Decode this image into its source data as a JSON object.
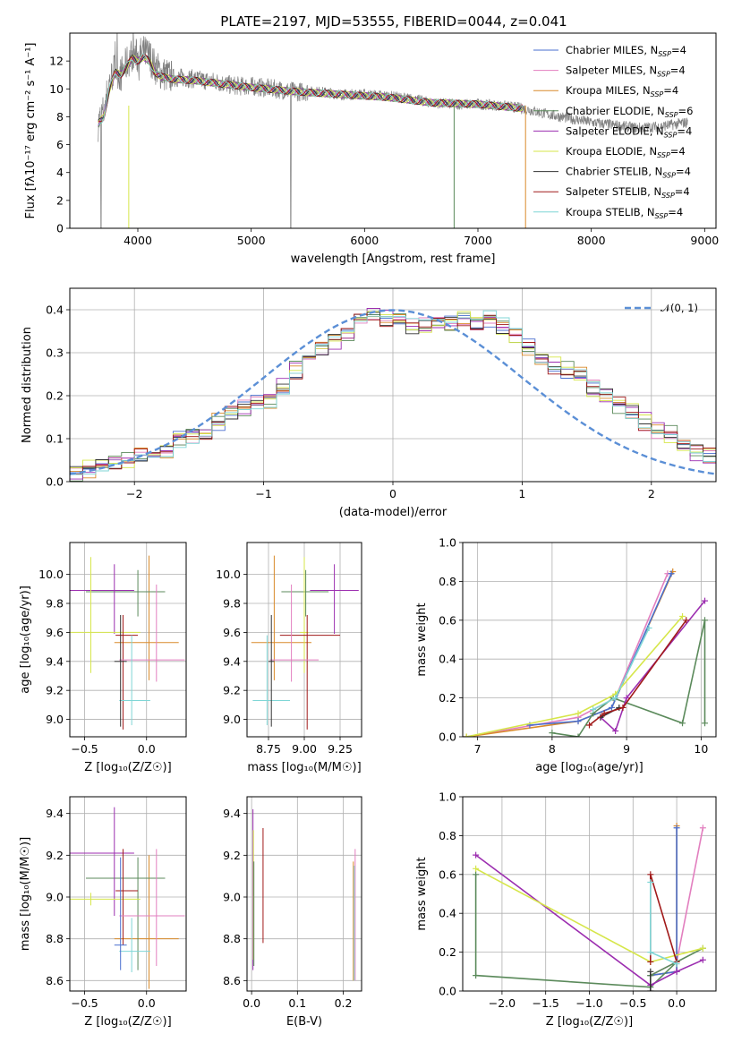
{
  "chart_data": [
    {
      "id": "spectrum",
      "type": "line",
      "title": "PLATE=2197, MJD=53555, FIBERID=0044, z=0.041",
      "xlabel": "wavelength [Angstrom, rest frame]",
      "ylabel": "Flux [fλ10⁻¹⁷ erg cm⁻² s⁻¹ A⁻¹]",
      "xlim": [
        3400,
        9100
      ],
      "ylim": [
        0,
        14
      ],
      "xticks": [
        4000,
        5000,
        6000,
        7000,
        8000,
        9000
      ],
      "yticks": [
        0,
        2,
        4,
        6,
        8,
        10,
        12
      ],
      "grid": false,
      "legend_position": "top-right",
      "data_color": "#808080",
      "observed_continuum": {
        "x": [
          3650,
          3700,
          3750,
          3800,
          3850,
          3900,
          3950,
          4000,
          4050,
          4100,
          4150,
          4200,
          4300,
          4400,
          4500,
          4600,
          4700,
          4800,
          4900,
          5000,
          5200,
          5400,
          5600,
          5800,
          6000,
          6200,
          6400,
          6600,
          6800,
          7000,
          7200,
          7400,
          7600,
          7800,
          8000,
          8200,
          8400,
          8600,
          8850
        ],
        "y": [
          7.5,
          8.5,
          10.5,
          11.5,
          11.0,
          11.8,
          12.5,
          12.3,
          12.6,
          12.4,
          11.6,
          11.2,
          10.8,
          10.8,
          10.7,
          10.6,
          10.5,
          10.3,
          10.2,
          10.2,
          10.0,
          9.8,
          9.8,
          9.6,
          9.6,
          9.5,
          9.3,
          9.0,
          8.9,
          8.9,
          8.8,
          8.6,
          8.2,
          7.9,
          7.6,
          7.4,
          7.2,
          7.3,
          7.6
        ]
      },
      "series": [
        {
          "name": "Chabrier MILES, N",
          "sub": "SSP",
          "suffix": "=4",
          "color": "#4a6fcf"
        },
        {
          "name": "Salpeter MILES, N",
          "sub": "SSP",
          "suffix": "=4",
          "color": "#e27fbf"
        },
        {
          "name": "Kroupa MILES, N",
          "sub": "SSP",
          "suffix": "=4",
          "color": "#d98a2b"
        },
        {
          "name": "Chabrier ELODIE, N",
          "sub": "SSP",
          "suffix": "=6",
          "color": "#5b8a5b"
        },
        {
          "name": "Salpeter ELODIE, N",
          "sub": "SSP",
          "suffix": "=4",
          "color": "#9c2eb0"
        },
        {
          "name": "Kroupa ELODIE, N",
          "sub": "SSP",
          "suffix": "=4",
          "color": "#d6e64a"
        },
        {
          "name": "Chabrier STELIB, N",
          "sub": "SSP",
          "suffix": "=4",
          "color": "#333333"
        },
        {
          "name": "Salpeter STELIB, N",
          "sub": "SSP",
          "suffix": "=4",
          "color": "#a11a1a"
        },
        {
          "name": "Kroupa STELIB, N",
          "sub": "SSP",
          "suffix": "=4",
          "color": "#7fd6d6"
        }
      ],
      "model_continuum": {
        "x": [
          3650,
          3700,
          3750,
          3800,
          3850,
          3900,
          3950,
          4000,
          4050,
          4100,
          4150,
          4200,
          4300,
          4500,
          4800,
          5000,
          5400,
          5800,
          6200,
          6600,
          7000,
          7400
        ],
        "y": [
          7.5,
          8.0,
          10.0,
          11.2,
          11.0,
          11.6,
          12.2,
          12.0,
          12.3,
          12.0,
          11.2,
          10.9,
          10.7,
          10.6,
          10.3,
          10.1,
          9.8,
          9.6,
          9.4,
          9.0,
          8.9,
          8.6
        ]
      }
    },
    {
      "id": "residuals",
      "type": "histogram",
      "xlabel": "(data-model)/error",
      "ylabel": "Normed distribution",
      "xlim": [
        -2.5,
        2.5
      ],
      "ylim": [
        0,
        0.45
      ],
      "xticks": [
        -2,
        -1,
        0,
        1,
        2
      ],
      "yticks": [
        0.0,
        0.1,
        0.2,
        0.3,
        0.4
      ],
      "grid": true,
      "legend_position": "top-right",
      "gaussian_label": "𝒩(0, 1)",
      "gaussian_color": "#5b8fd6",
      "bin_width": 0.1,
      "bin_start": -2.5,
      "base_profile": [
        0.02,
        0.03,
        0.04,
        0.05,
        0.05,
        0.06,
        0.06,
        0.07,
        0.1,
        0.11,
        0.12,
        0.14,
        0.16,
        0.17,
        0.18,
        0.19,
        0.22,
        0.26,
        0.29,
        0.31,
        0.33,
        0.35,
        0.38,
        0.39,
        0.38,
        0.37,
        0.36,
        0.36,
        0.37,
        0.37,
        0.38,
        0.37,
        0.38,
        0.36,
        0.34,
        0.31,
        0.28,
        0.27,
        0.26,
        0.25,
        0.22,
        0.2,
        0.18,
        0.16,
        0.14,
        0.12,
        0.11,
        0.09,
        0.07,
        0.06,
        0.05,
        0.05,
        0.04,
        0.04,
        0.03,
        0.03,
        0.02,
        0.02,
        0.02,
        0.02
      ]
    },
    {
      "id": "age-vs-Z",
      "type": "errorbar",
      "xlabel": "Z [log₁₀(Z/Z☉)]",
      "ylabel": "age  [log₁₀(age/yr)]",
      "xlim": [
        -0.62,
        0.32
      ],
      "ylim": [
        8.88,
        10.22
      ],
      "xticks": [
        -0.5,
        0.0
      ],
      "yticks": [
        9.0,
        9.2,
        9.4,
        9.6,
        9.8,
        10.0
      ],
      "grid": true,
      "points": [
        {
          "x": 0.02,
          "y": 9.53,
          "xerr": [
            0.28,
            0.24
          ],
          "yerr": [
            0.26,
            0.6
          ],
          "c": 2
        },
        {
          "x": -0.07,
          "y": 9.88,
          "xerr": [
            0.42,
            0.22
          ],
          "yerr": [
            0.17,
            0.15
          ],
          "c": 3
        },
        {
          "x": -0.26,
          "y": 9.89,
          "xerr": [
            0.38,
            0.16
          ],
          "yerr": [
            0.3,
            0.18
          ],
          "c": 4
        },
        {
          "x": -0.45,
          "y": 9.6,
          "xerr": [
            0.22,
            0.4
          ],
          "yerr": [
            0.28,
            0.52
          ],
          "c": 5
        },
        {
          "x": -0.19,
          "y": 9.58,
          "xerr": [
            0.06,
            0.12
          ],
          "yerr": [
            0.65,
            0.14
          ],
          "c": 7
        },
        {
          "x": 0.08,
          "y": 9.41,
          "xerr": [
            0.3,
            0.23
          ],
          "yerr": [
            0.15,
            0.52
          ],
          "c": 1
        },
        {
          "x": -0.12,
          "y": 9.13,
          "xerr": [
            0.1,
            0.15
          ],
          "yerr": [
            0.17,
            0.45
          ],
          "c": 8
        },
        {
          "x": -0.21,
          "y": 9.4,
          "xerr": [
            0.05,
            0.05
          ],
          "yerr": [
            0.45,
            0.32
          ],
          "c": 6
        }
      ]
    },
    {
      "id": "age-vs-mass",
      "type": "errorbar",
      "xlabel": "mass [log₁₀(M/M☉)]",
      "ylabel": "",
      "xlim": [
        8.6,
        9.4
      ],
      "ylim": [
        8.88,
        10.22
      ],
      "xticks": [
        8.75,
        9.0,
        9.25
      ],
      "yticks": [
        9.0,
        9.2,
        9.4,
        9.6,
        9.8,
        10.0
      ],
      "grid": true,
      "points": [
        {
          "x": 8.79,
          "y": 9.53,
          "xerr": [
            0.16,
            0.26
          ],
          "yerr": [
            0.26,
            0.6
          ],
          "c": 2
        },
        {
          "x": 9.01,
          "y": 9.88,
          "xerr": [
            0.17,
            0.16
          ],
          "yerr": [
            0.17,
            0.15
          ],
          "c": 3
        },
        {
          "x": 9.21,
          "y": 9.89,
          "xerr": [
            0.17,
            0.17
          ],
          "yerr": [
            0.3,
            0.18
          ],
          "c": 4
        },
        {
          "x": 9.0,
          "y": 9.6,
          "xerr": [
            0.03,
            0.03
          ],
          "yerr": [
            0.28,
            0.52
          ],
          "c": 5
        },
        {
          "x": 9.02,
          "y": 9.58,
          "xerr": [
            0.19,
            0.23
          ],
          "yerr": [
            0.65,
            0.14
          ],
          "c": 7
        },
        {
          "x": 8.91,
          "y": 9.41,
          "xerr": [
            0.15,
            0.19
          ],
          "yerr": [
            0.15,
            0.52
          ],
          "c": 1
        },
        {
          "x": 8.74,
          "y": 9.13,
          "xerr": [
            0.1,
            0.16
          ],
          "yerr": [
            0.17,
            0.45
          ],
          "c": 8
        },
        {
          "x": 8.77,
          "y": 9.4,
          "xerr": [
            0.02,
            0.02
          ],
          "yerr": [
            0.45,
            0.32
          ],
          "c": 6
        }
      ]
    },
    {
      "id": "weight-vs-age",
      "type": "line",
      "xlabel": "age  [log₁₀(age/yr)]",
      "ylabel": "mass weight",
      "xlim": [
        6.8,
        10.2
      ],
      "ylim": [
        0,
        1.0
      ],
      "xticks": [
        7,
        8,
        9,
        10
      ],
      "yticks": [
        0.0,
        0.2,
        0.4,
        0.6,
        0.8,
        1.0
      ],
      "grid": true,
      "series": [
        {
          "c": 1,
          "x": [
            6.85,
            8.35,
            8.85,
            9.55
          ],
          "y": [
            0.0,
            0.1,
            0.2,
            0.84
          ]
        },
        {
          "c": 2,
          "x": [
            6.85,
            8.35,
            8.8,
            9.62
          ],
          "y": [
            0.0,
            0.08,
            0.15,
            0.85
          ]
        },
        {
          "c": 0,
          "x": [
            7.7,
            8.35,
            8.8,
            9.6
          ],
          "y": [
            0.06,
            0.08,
            0.15,
            0.84
          ]
        },
        {
          "c": 3,
          "x": [
            8.0,
            8.35,
            8.55,
            8.82,
            9.75,
            10.05,
            10.05
          ],
          "y": [
            0.02,
            0.0,
            0.12,
            0.2,
            0.07,
            0.6,
            0.07
          ]
        },
        {
          "c": 4,
          "x": [
            8.65,
            8.85,
            9.0,
            10.05
          ],
          "y": [
            0.1,
            0.03,
            0.2,
            0.7
          ]
        },
        {
          "c": 5,
          "x": [
            6.85,
            8.35,
            8.85,
            9.75
          ],
          "y": [
            0.0,
            0.12,
            0.22,
            0.62
          ]
        },
        {
          "c": 6,
          "x": [
            8.65,
            8.9
          ],
          "y": [
            0.1,
            0.15
          ]
        },
        {
          "c": 7,
          "x": [
            8.5,
            8.7,
            8.95,
            9.8
          ],
          "y": [
            0.06,
            0.12,
            0.15,
            0.6
          ]
        },
        {
          "c": 8,
          "x": [
            8.55,
            8.85,
            9.3
          ],
          "y": [
            0.14,
            0.2,
            0.56
          ]
        }
      ]
    },
    {
      "id": "mass-vs-Z",
      "type": "errorbar",
      "xlabel": "Z [log₁₀(Z/Z☉)]",
      "ylabel": "mass [log₁₀(M/M☉)]",
      "xlim": [
        -0.62,
        0.32
      ],
      "ylim": [
        8.55,
        9.48
      ],
      "xticks": [
        -0.5,
        0.0
      ],
      "yticks": [
        8.6,
        8.8,
        9.0,
        9.2,
        9.4
      ],
      "grid": true,
      "points": [
        {
          "x": 0.02,
          "y": 8.8,
          "xerr": [
            0.28,
            0.24
          ],
          "yerr": [
            0.24,
            0.4
          ],
          "c": 2
        },
        {
          "x": -0.07,
          "y": 9.09,
          "xerr": [
            0.42,
            0.22
          ],
          "yerr": [
            0.44,
            0.1
          ],
          "c": 3
        },
        {
          "x": -0.26,
          "y": 9.21,
          "xerr": [
            0.38,
            0.16
          ],
          "yerr": [
            0.3,
            0.22
          ],
          "c": 4
        },
        {
          "x": -0.45,
          "y": 8.99,
          "xerr": [
            0.22,
            0.4
          ],
          "yerr": [
            0.03,
            0.03
          ],
          "c": 5
        },
        {
          "x": -0.19,
          "y": 9.03,
          "xerr": [
            0.06,
            0.12
          ],
          "yerr": [
            0.26,
            0.2
          ],
          "c": 7
        },
        {
          "x": 0.08,
          "y": 8.91,
          "xerr": [
            0.3,
            0.23
          ],
          "yerr": [
            0.24,
            0.32
          ],
          "c": 1
        },
        {
          "x": -0.12,
          "y": 8.74,
          "xerr": [
            0.1,
            0.15
          ],
          "yerr": [
            0.1,
            0.16
          ],
          "c": 8
        },
        {
          "x": -0.21,
          "y": 8.77,
          "xerr": [
            0.05,
            0.05
          ],
          "yerr": [
            0.12,
            0.42
          ],
          "c": 0
        }
      ]
    },
    {
      "id": "mass-vs-EBV",
      "type": "errorbar",
      "xlabel": "E(B-V)",
      "ylabel": "",
      "xlim": [
        -0.01,
        0.24
      ],
      "ylim": [
        8.55,
        9.48
      ],
      "xticks": [
        0.0,
        0.1,
        0.2
      ],
      "yticks": [
        8.6,
        8.8,
        9.0,
        9.2,
        9.4
      ],
      "grid": true,
      "points": [
        {
          "x": 0.003,
          "y": 9.0,
          "xerr": [
            0,
            0
          ],
          "yerr": [
            0.35,
            0.42
          ],
          "c": 4
        },
        {
          "x": 0.004,
          "y": 9.0,
          "xerr": [
            0,
            0
          ],
          "yerr": [
            0.3,
            0.32
          ],
          "c": 5
        },
        {
          "x": 0.005,
          "y": 8.95,
          "xerr": [
            0,
            0
          ],
          "yerr": [
            0.28,
            0.22
          ],
          "c": 3
        },
        {
          "x": 0.025,
          "y": 9.05,
          "xerr": [
            0,
            0
          ],
          "yerr": [
            0.27,
            0.28
          ],
          "c": 7
        },
        {
          "x": 0.222,
          "y": 8.9,
          "xerr": [
            0,
            0
          ],
          "yerr": [
            0.3,
            0.27
          ],
          "c": 2
        },
        {
          "x": 0.226,
          "y": 8.95,
          "xerr": [
            0,
            0
          ],
          "yerr": [
            0.35,
            0.28
          ],
          "c": 1
        },
        {
          "x": 0.224,
          "y": 8.9,
          "xerr": [
            0,
            0
          ],
          "yerr": [
            0.3,
            0.25
          ],
          "c": 8
        }
      ]
    },
    {
      "id": "weight-vs-Z",
      "type": "line",
      "xlabel": "Z [log₁₀(Z/Z☉)]",
      "ylabel": "mass weight",
      "xlim": [
        -2.45,
        0.45
      ],
      "ylim": [
        0,
        1.0
      ],
      "xticks": [
        -2.0,
        -1.5,
        -1.0,
        -0.5,
        0.0
      ],
      "yticks": [
        0.0,
        0.2,
        0.4,
        0.6,
        0.8,
        1.0
      ],
      "grid": true,
      "series": [
        {
          "c": 1,
          "x": [
            -0.3,
            0.0,
            0.3
          ],
          "y": [
            0.08,
            0.15,
            0.84
          ]
        },
        {
          "c": 2,
          "x": [
            -0.3,
            0.0,
            0.0
          ],
          "y": [
            0.08,
            0.1,
            0.85
          ]
        },
        {
          "c": 0,
          "x": [
            -0.3,
            0.0,
            0.0
          ],
          "y": [
            0.08,
            0.1,
            0.84
          ]
        },
        {
          "c": 3,
          "x": [
            -2.3,
            -2.3,
            -0.3,
            0.0,
            0.3,
            -0.3
          ],
          "y": [
            0.6,
            0.08,
            0.02,
            0.15,
            0.22,
            0.08
          ]
        },
        {
          "c": 4,
          "x": [
            -2.3,
            -0.3,
            0.0,
            0.3
          ],
          "y": [
            0.7,
            0.03,
            0.1,
            0.16
          ]
        },
        {
          "c": 5,
          "x": [
            -2.3,
            -0.3,
            0.3
          ],
          "y": [
            0.63,
            0.15,
            0.22
          ]
        },
        {
          "c": 6,
          "x": [
            -0.3,
            -0.3
          ],
          "y": [
            0.1,
            0.0
          ]
        },
        {
          "c": 7,
          "x": [
            -0.3,
            -0.3,
            0.0
          ],
          "y": [
            0.15,
            0.6,
            0.15
          ]
        },
        {
          "c": 8,
          "x": [
            -0.3,
            -0.3,
            0.0
          ],
          "y": [
            0.56,
            0.2,
            0.14
          ]
        }
      ]
    }
  ]
}
